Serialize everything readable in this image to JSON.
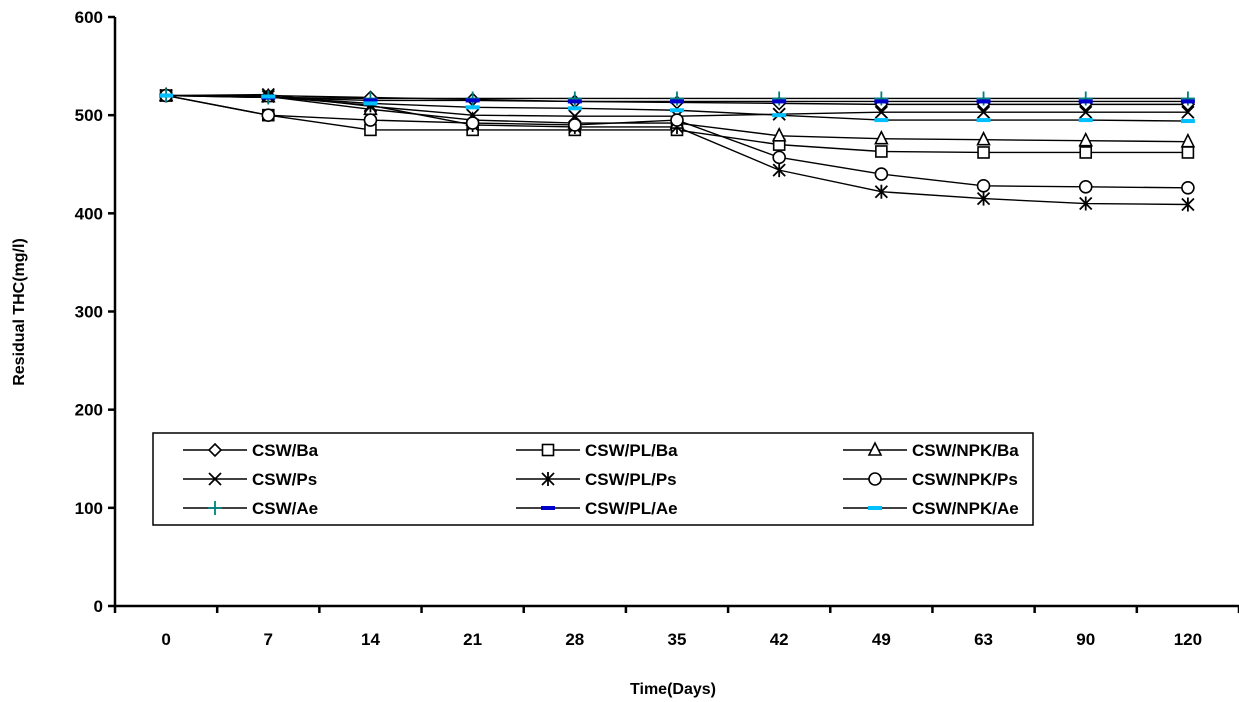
{
  "chart_data": {
    "type": "line",
    "title": "",
    "xlabel": "Time(Days)",
    "ylabel": "Residual THC(mg/l)",
    "categories": [
      "0",
      "7",
      "14",
      "21",
      "28",
      "35",
      "42",
      "49",
      "63",
      "90",
      "120"
    ],
    "ylim": [
      0,
      600
    ],
    "yticks": [
      "0",
      "100",
      "200",
      "300",
      "400",
      "500",
      "600"
    ],
    "grid": false,
    "legend_position": "lower-middle, inside plot area, 3 columns",
    "series": [
      {
        "name": "CSW/Ba",
        "marker": "diamond",
        "color": "#000000",
        "values": [
          520,
          520,
          518,
          516,
          514,
          513,
          512,
          511,
          511,
          511,
          511
        ]
      },
      {
        "name": "CSW/PL/Ba",
        "marker": "square",
        "color": "#000000",
        "values": [
          520,
          500,
          485,
          485,
          485,
          485,
          470,
          463,
          462,
          462,
          462
        ]
      },
      {
        "name": "CSW/NPK/Ba",
        "marker": "triangle",
        "color": "#000000",
        "values": [
          520,
          519,
          506,
          495,
          492,
          492,
          479,
          476,
          475,
          474,
          473
        ]
      },
      {
        "name": "CSW/Ps",
        "marker": "x",
        "color": "#000000",
        "values": [
          520,
          521,
          509,
          500,
          499,
          499,
          501,
          503,
          503,
          503,
          503
        ]
      },
      {
        "name": "CSW/PL/Ps",
        "marker": "asterisk",
        "color": "#000000",
        "values": [
          520,
          519,
          510,
          490,
          488,
          488,
          444,
          422,
          415,
          410,
          409
        ]
      },
      {
        "name": "CSW/NPK/Ps",
        "marker": "circle",
        "color": "#000000",
        "values": [
          520,
          500,
          495,
          492,
          490,
          495,
          457,
          440,
          428,
          427,
          426
        ]
      },
      {
        "name": "CSW/Ae",
        "marker": "plus",
        "color": "#008080",
        "values": [
          520,
          518,
          517,
          517,
          517,
          517,
          517,
          517,
          517,
          517,
          517
        ]
      },
      {
        "name": "CSW/PL/Ae",
        "marker": "dash",
        "color": "#0000cc",
        "values": [
          520,
          518,
          515,
          515,
          514,
          514,
          514,
          514,
          514,
          514,
          514
        ]
      },
      {
        "name": "CSW/NPK/Ae",
        "marker": "dash",
        "color": "#00bfff",
        "values": [
          520,
          519,
          512,
          508,
          507,
          505,
          500,
          495,
          495,
          495,
          494
        ]
      }
    ]
  }
}
